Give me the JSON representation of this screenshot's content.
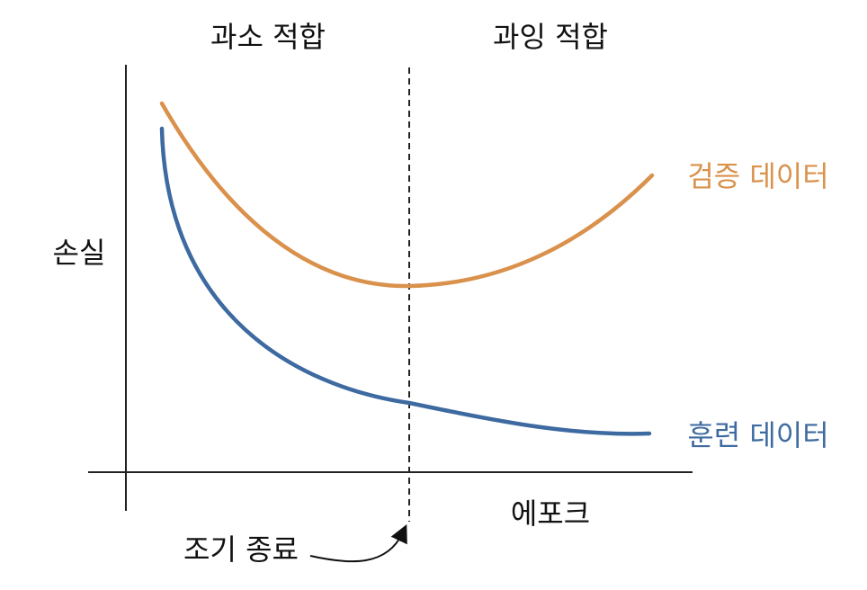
{
  "labels": {
    "underfit": "과소 적합",
    "overfit": "과잉 적합",
    "y_axis": "손실",
    "x_axis": "에포크",
    "early_stop": "조기 종료"
  },
  "series": [
    {
      "name": "검증 데이터",
      "color": "#d9914c"
    },
    {
      "name": "훈련 데이터",
      "color": "#3d6aa0"
    }
  ],
  "colors": {
    "axis": "#222222",
    "text": "#111111"
  }
}
